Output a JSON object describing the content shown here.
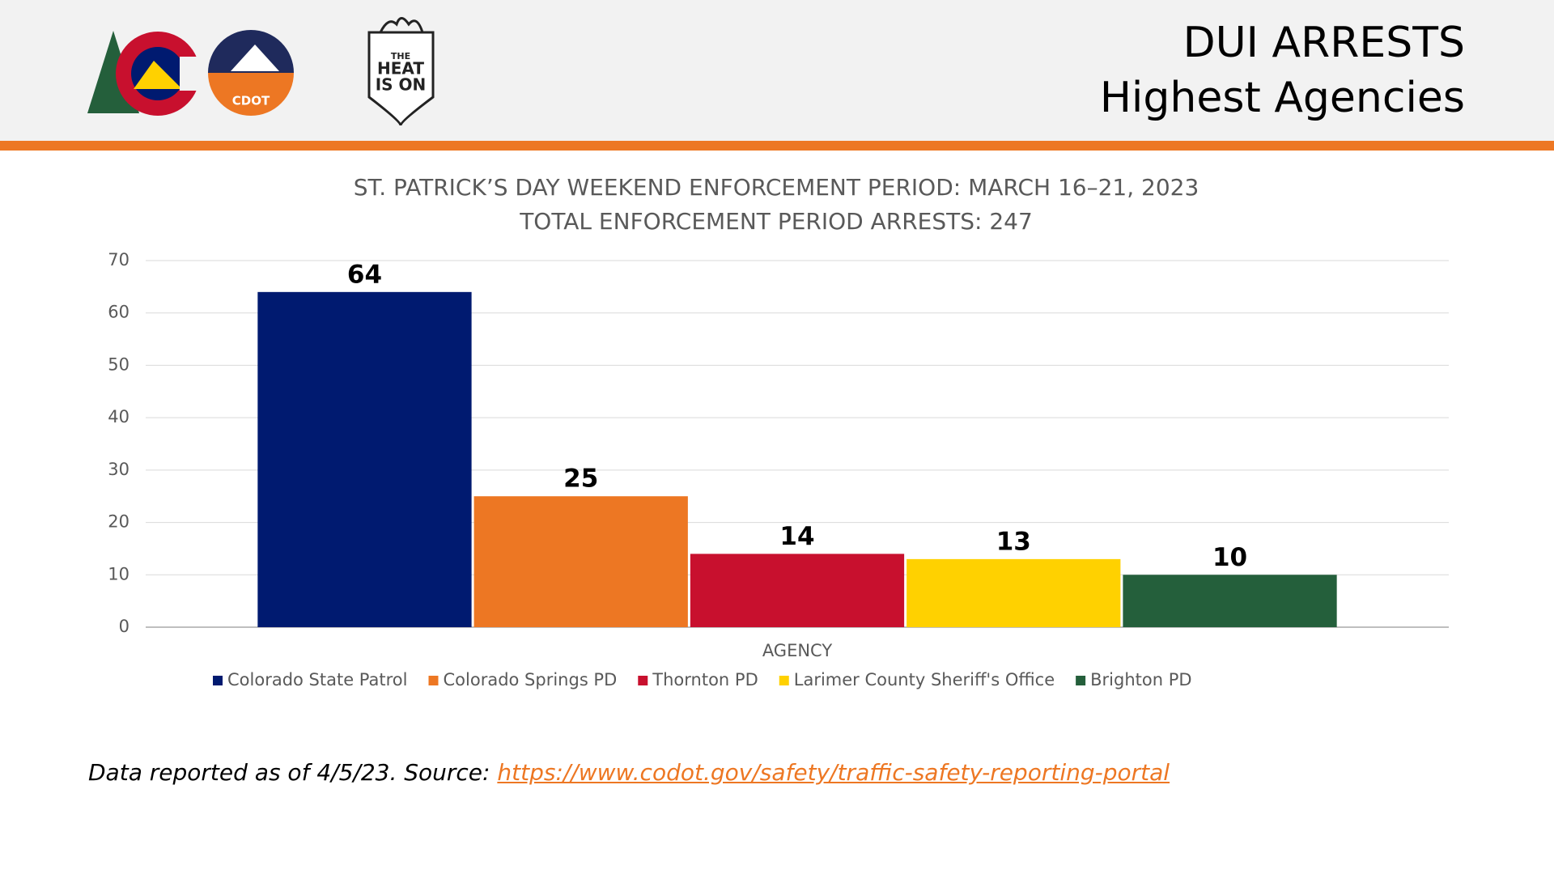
{
  "header": {
    "title_lines": [
      "DUI ARRESTS",
      "Highest Agencies"
    ],
    "logo_texts": [
      "CDOT",
      "THE",
      "HEAT",
      "IS ON"
    ]
  },
  "chart_data": {
    "type": "bar",
    "title_lines": [
      "ST. PATRICK’S DAY WEEKEND ENFORCEMENT PERIOD: MARCH 16–21, 2023",
      "TOTAL ENFORCEMENT PERIOD ARRESTS: 247"
    ],
    "x_label": "AGENCY",
    "categories": [
      null
    ],
    "series": [
      {
        "name": "Colorado State Patrol",
        "color": "#001a70",
        "values": [
          64
        ]
      },
      {
        "name": "Colorado Springs PD",
        "color": "#ed7723",
        "values": [
          25
        ]
      },
      {
        "name": "Thornton PD",
        "color": "#c8102e",
        "values": [
          14
        ]
      },
      {
        "name": "Larimer County Sheriff's Office",
        "color": "#ffd100",
        "values": [
          13
        ]
      },
      {
        "name": "Brighton PD",
        "color": "#245f3b",
        "values": [
          10
        ]
      }
    ],
    "ylim": [
      0,
      70
    ],
    "yticks": [
      0,
      10,
      20,
      30,
      40,
      50,
      60,
      70
    ],
    "grid": true,
    "legend": "bottom"
  },
  "footer": {
    "text": "Data reported as of 4/5/23. Source: ",
    "link": "https://www.codot.gov/safety/traffic-safety-reporting-portal"
  }
}
